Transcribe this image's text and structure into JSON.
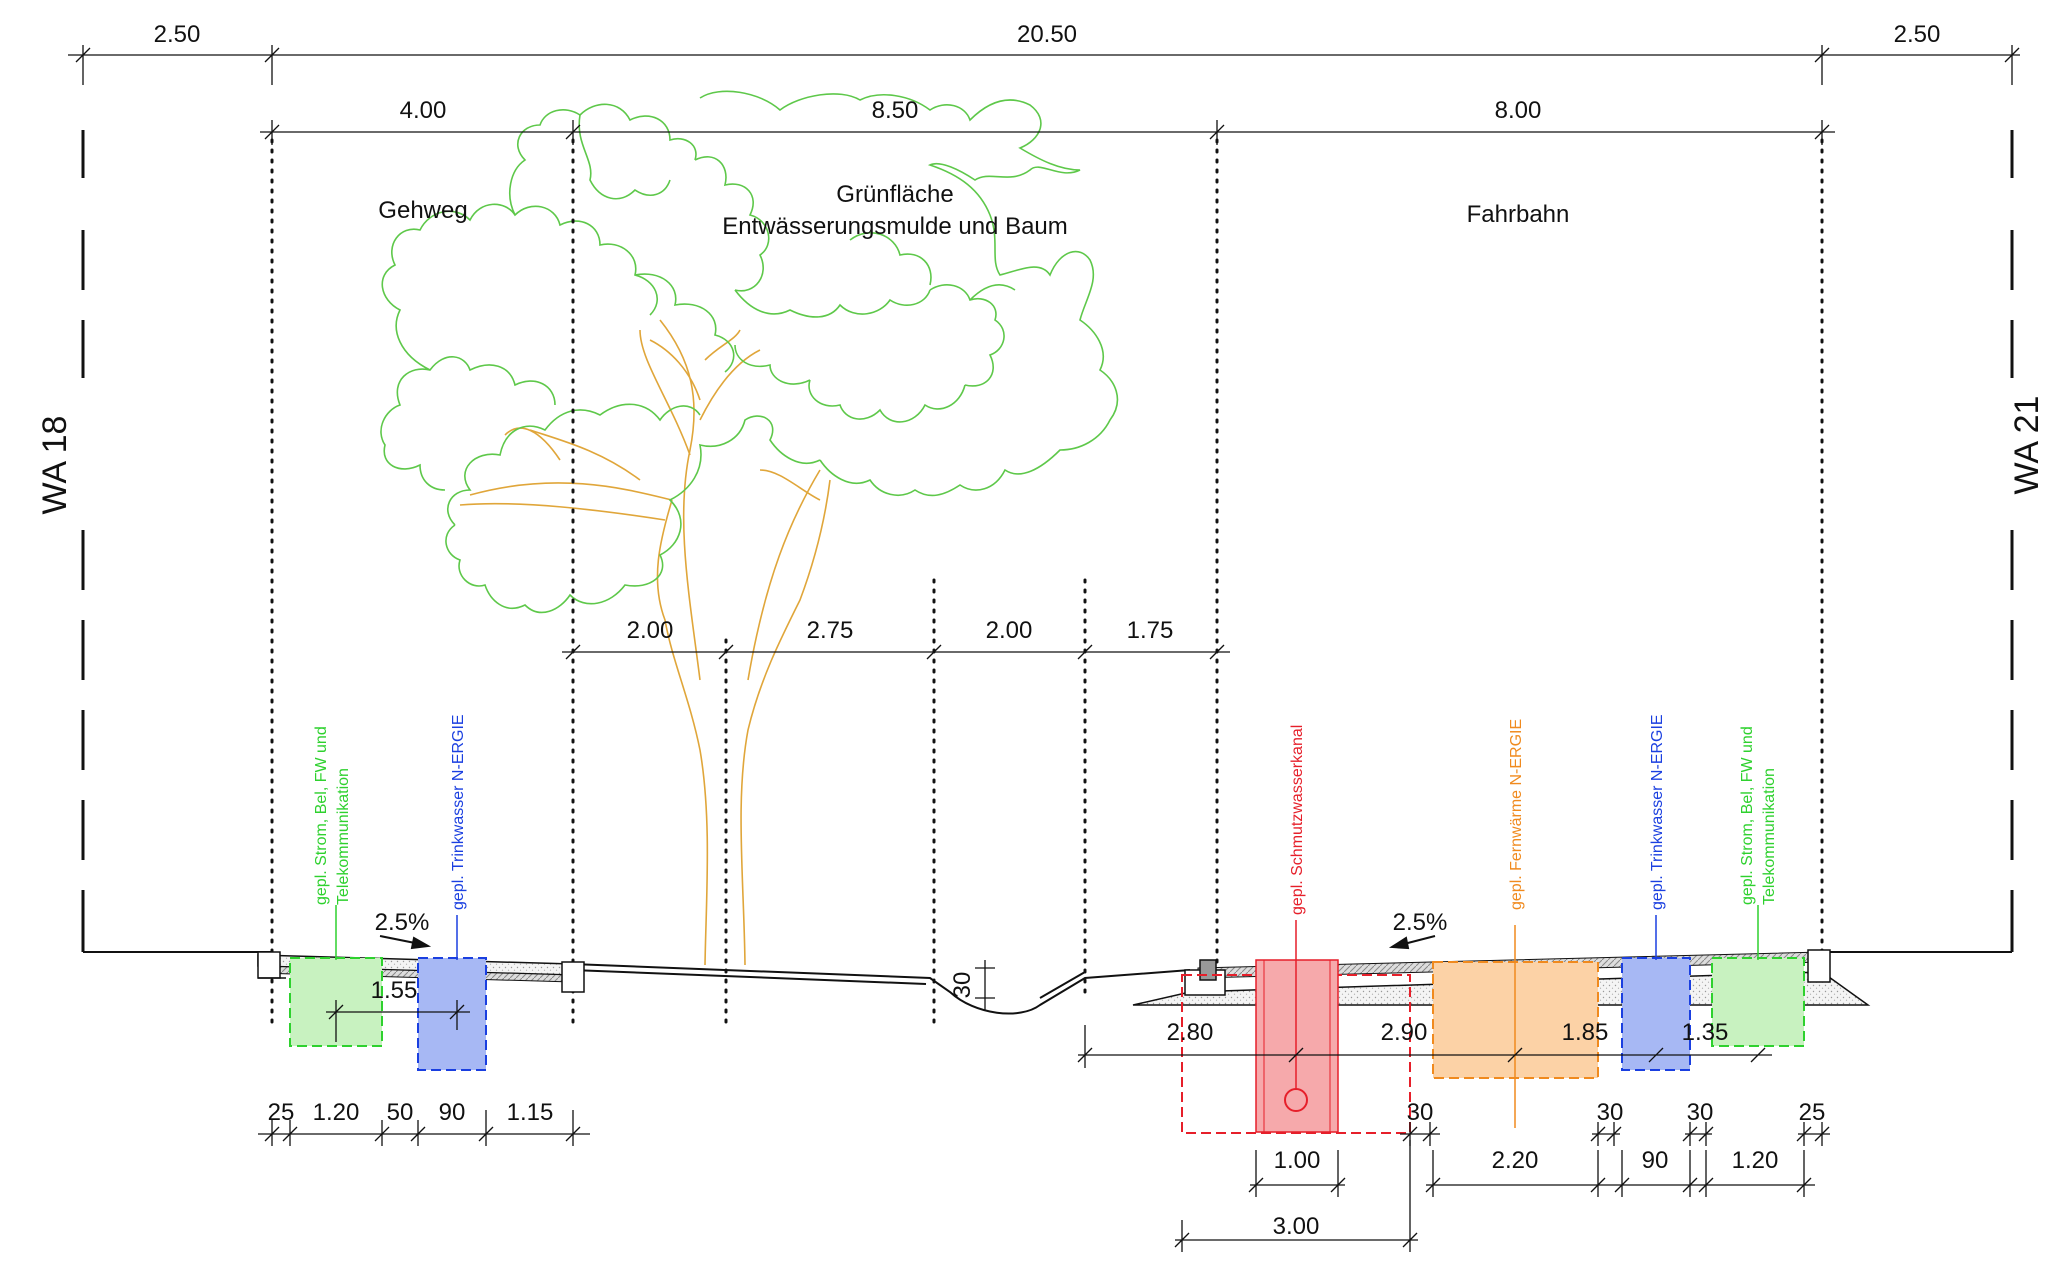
{
  "side_labels": {
    "left": "WA 18",
    "right": "WA 21"
  },
  "top_dims": {
    "left": "2.50",
    "total": "20.50",
    "right": "2.50"
  },
  "section_dims": {
    "gehweg": "4.00",
    "gruen": "8.50",
    "fahrbahn": "8.00"
  },
  "zones": {
    "gehweg": "Gehweg",
    "gruen_line1": "Grünfläche",
    "gruen_line2": "Entwässerungsmulde und Baum",
    "fahrbahn": "Fahrbahn"
  },
  "mid_dims": [
    "2.00",
    "2.75",
    "2.00",
    "1.75"
  ],
  "slopes": {
    "left": "2.5%",
    "right": "2.5%"
  },
  "swale_depth": "30",
  "utilities": {
    "left_green_1": "gepl.  Strom, Bel, FW und",
    "left_green_2": "Telekommunikation",
    "left_blue": "gepl. Trinkwasser N-ERGIE",
    "right_red": "gepl. Schmutzwasserkanal",
    "right_orange": "gepl. Fernwärme N-ERGIE",
    "right_blue": "gepl. Trinkwasser N-ERGIE",
    "right_green_1": "gepl.  Strom, Bel, FW und",
    "right_green_2": "Telekommunikation"
  },
  "depths": {
    "left_150": "1.55",
    "right_280": "2.80",
    "right_290": "2.90",
    "right_185": "1.85",
    "right_135": "1.35"
  },
  "bottom_left_dims": [
    "25",
    "1.20",
    "50",
    "90",
    "1.15"
  ],
  "bottom_right_dims": {
    "r30a": "30",
    "r30b": "30",
    "r30c": "30",
    "r25": "25",
    "w100": "1.00",
    "w220": "2.20",
    "w90": "90",
    "w120": "1.20",
    "w300": "3.00"
  },
  "colors": {
    "tree_crown": "#5ec84a",
    "trunk": "#e0a63a",
    "green_util": "#2ed12e",
    "blue_util": "#1a3fe0",
    "red_util": "#e61f2a",
    "orange_util": "#f08a1e"
  }
}
